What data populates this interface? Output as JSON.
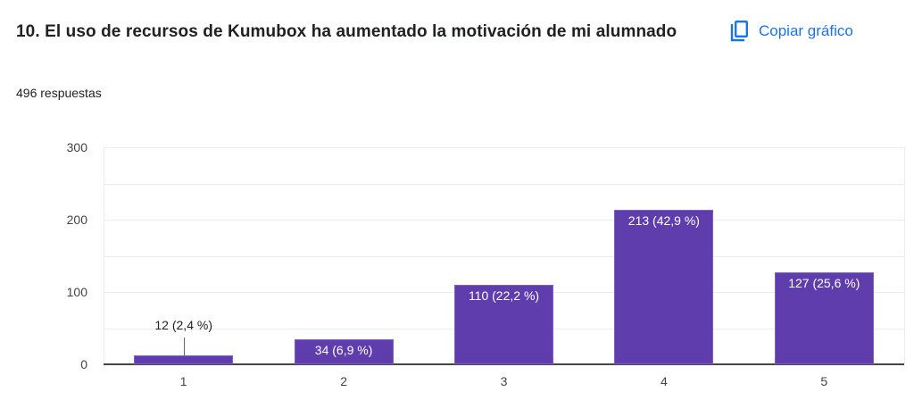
{
  "header": {
    "title": "10. El uso de recursos de Kumubox ha aumentado la motivación de mi alumnado",
    "responses": "496 respuestas",
    "copy_button": {
      "label": "Copiar gráfico",
      "icon": "copy-icon"
    }
  },
  "colors": {
    "bar": "#5f3dac",
    "accent": "#1a73e8"
  },
  "chart_data": {
    "type": "bar",
    "title": "10. El uso de recursos de Kumubox ha aumentado la motivación de mi alumnado",
    "subtitle": "496 respuestas",
    "categories": [
      "1",
      "2",
      "3",
      "4",
      "5"
    ],
    "values": [
      12,
      34,
      110,
      213,
      127
    ],
    "percentages": [
      2.4,
      6.9,
      22.2,
      42.9,
      25.6
    ],
    "data_labels": [
      "12 (2,4 %)",
      "34 (6,9 %)",
      "110 (22,2 %)",
      "213 (42,9 %)",
      "127 (25,6 %)"
    ],
    "xlabel": "",
    "ylabel": "",
    "ylim": [
      0,
      300
    ],
    "yticks": [
      "0",
      "100",
      "200",
      "300"
    ],
    "grid": true,
    "legend": "none"
  }
}
